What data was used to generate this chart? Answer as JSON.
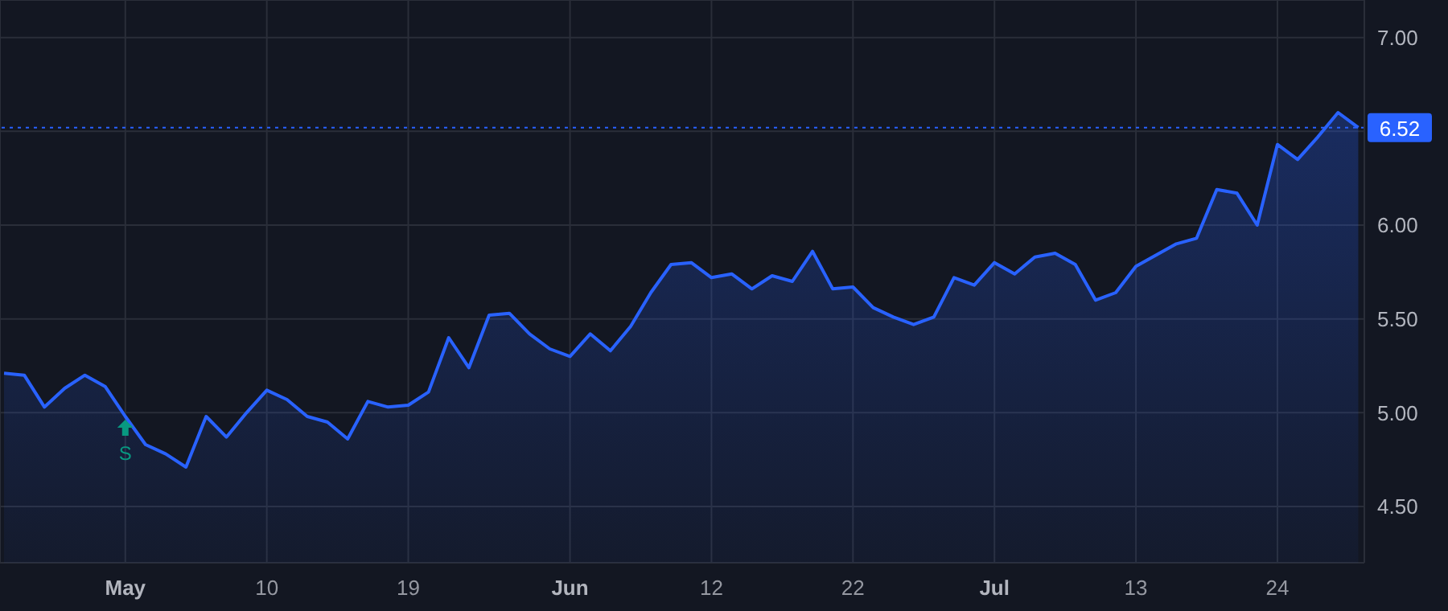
{
  "chart_data": {
    "type": "area",
    "categories": [
      null,
      null,
      null,
      null,
      null,
      null,
      "May",
      null,
      null,
      null,
      null,
      null,
      null,
      "10",
      null,
      null,
      null,
      null,
      null,
      null,
      "19",
      null,
      null,
      null,
      null,
      null,
      null,
      null,
      "Jun",
      null,
      null,
      null,
      null,
      null,
      null,
      "12",
      null,
      null,
      null,
      null,
      null,
      null,
      "22",
      null,
      null,
      null,
      null,
      null,
      null,
      "Jul",
      null,
      null,
      null,
      null,
      null,
      null,
      "13",
      null,
      null,
      null,
      null,
      null,
      null,
      "24",
      null,
      null,
      null,
      null
    ],
    "series": [
      {
        "color": "#2962ff",
        "values": [
          5.21,
          5.2,
          5.03,
          5.13,
          5.2,
          5.14,
          4.98,
          4.83,
          4.78,
          4.71,
          4.98,
          4.87,
          5.0,
          5.12,
          5.07,
          4.98,
          4.95,
          4.86,
          5.06,
          5.03,
          5.04,
          5.11,
          5.4,
          5.24,
          5.52,
          5.53,
          5.42,
          5.34,
          5.3,
          5.42,
          5.33,
          5.46,
          5.64,
          5.79,
          5.8,
          5.72,
          5.74,
          5.66,
          5.73,
          5.7,
          5.86,
          5.66,
          5.67,
          5.56,
          5.51,
          5.47,
          5.51,
          5.72,
          5.68,
          5.8,
          5.74,
          5.83,
          5.85,
          5.79,
          5.6,
          5.64,
          5.78,
          5.84,
          5.9,
          5.93,
          6.19,
          6.17,
          6.0,
          6.43,
          6.35,
          6.47,
          6.6,
          6.52
        ]
      }
    ],
    "ylim": [
      4.2,
      7.2
    ],
    "yticks": [
      {
        "value": 4.5,
        "label": "4.50"
      },
      {
        "value": 5,
        "label": "5.00"
      },
      {
        "value": 5.5,
        "label": "5.50"
      },
      {
        "value": 6,
        "label": "6.00"
      },
      {
        "value": 6.5,
        "label": null
      },
      {
        "value": 7,
        "label": "7.00"
      }
    ],
    "grid": true,
    "marker": "none",
    "line_style": "solid",
    "ref_lines": [
      {
        "axis": "y",
        "value": 6.52,
        "label": "6.52",
        "color": "#2962ff",
        "line_style": "dotted"
      }
    ],
    "annotations": [
      {
        "text": "S",
        "x": "May",
        "y": 4.98
      }
    ]
  }
}
